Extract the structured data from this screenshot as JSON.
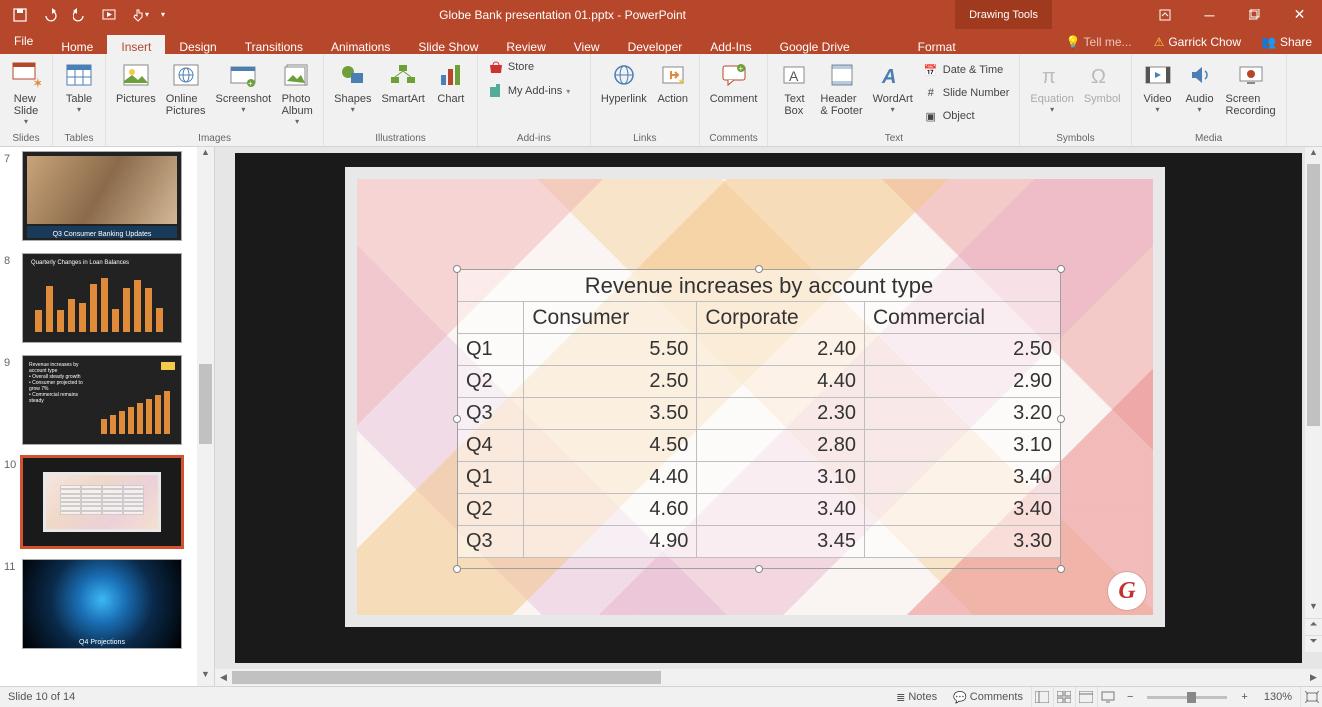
{
  "app": {
    "title": "Globe Bank presentation 01.pptx - PowerPoint",
    "contextual_tab_group": "Drawing Tools",
    "user_name": "Garrick Chow",
    "share_label": "Share",
    "tellme_placeholder": "Tell me..."
  },
  "colors": {
    "titlebar_bg": "#b7472a",
    "ribbon_bg": "#f1f1f1",
    "selected_thumb_border": "#d35230"
  },
  "menutabs": {
    "file": "File",
    "tabs": [
      "Home",
      "Insert",
      "Design",
      "Transitions",
      "Animations",
      "Slide Show",
      "Review",
      "View",
      "Developer",
      "Add-Ins",
      "Google Drive"
    ],
    "contextual": [
      "Format"
    ],
    "active": "Insert"
  },
  "ribbon": {
    "groups": [
      {
        "label": "Slides",
        "items": [
          {
            "name": "new-slide",
            "label": "New\nSlide"
          }
        ]
      },
      {
        "label": "Tables",
        "items": [
          {
            "name": "table",
            "label": "Table"
          }
        ]
      },
      {
        "label": "Images",
        "items": [
          {
            "name": "pictures",
            "label": "Pictures"
          },
          {
            "name": "online-pictures",
            "label": "Online\nPictures"
          },
          {
            "name": "screenshot",
            "label": "Screenshot"
          },
          {
            "name": "photo-album",
            "label": "Photo\nAlbum"
          }
        ]
      },
      {
        "label": "Illustrations",
        "items": [
          {
            "name": "shapes",
            "label": "Shapes"
          },
          {
            "name": "smartart",
            "label": "SmartArt"
          },
          {
            "name": "chart",
            "label": "Chart"
          }
        ]
      },
      {
        "label": "Add-ins",
        "store": "Store",
        "myaddins": "My Add-ins"
      },
      {
        "label": "Links",
        "items": [
          {
            "name": "hyperlink",
            "label": "Hyperlink"
          },
          {
            "name": "action",
            "label": "Action"
          }
        ]
      },
      {
        "label": "Comments",
        "items": [
          {
            "name": "comment",
            "label": "Comment"
          }
        ]
      },
      {
        "label": "Text",
        "items": [
          {
            "name": "text-box",
            "label": "Text\nBox"
          },
          {
            "name": "header-footer",
            "label": "Header\n& Footer"
          },
          {
            "name": "wordart",
            "label": "WordArt"
          }
        ],
        "side": [
          {
            "name": "date-time",
            "label": "Date & Time"
          },
          {
            "name": "slide-number",
            "label": "Slide Number"
          },
          {
            "name": "object",
            "label": "Object"
          }
        ]
      },
      {
        "label": "Symbols",
        "items": [
          {
            "name": "equation",
            "label": "Equation",
            "disabled": true
          },
          {
            "name": "symbol",
            "label": "Symbol",
            "disabled": true
          }
        ]
      },
      {
        "label": "Media",
        "items": [
          {
            "name": "video",
            "label": "Video"
          },
          {
            "name": "audio",
            "label": "Audio"
          },
          {
            "name": "screen-recording",
            "label": "Screen\nRecording"
          }
        ]
      }
    ]
  },
  "thumbnails": {
    "visible": [
      {
        "num": 7,
        "title": "Q3 Consumer Banking Updates",
        "selected": false,
        "type": "photo"
      },
      {
        "num": 8,
        "title": "Quarterly Changes in Loan Balances",
        "selected": false,
        "type": "bar-dark"
      },
      {
        "num": 9,
        "title": "Revenue increases by account type",
        "selected": false,
        "type": "bar-dark-bullets"
      },
      {
        "num": 10,
        "title": "",
        "selected": true,
        "type": "table-light"
      },
      {
        "num": 11,
        "title": "Q4 Projections",
        "selected": false,
        "type": "globe"
      }
    ]
  },
  "slide_table": {
    "title": "Revenue increases by account type",
    "columns": [
      "",
      "Consumer",
      "Corporate",
      "Commercial"
    ],
    "col_align": [
      "left",
      "right",
      "right",
      "right"
    ],
    "rows": [
      [
        "Q1",
        "5.50",
        "2.40",
        "2.50"
      ],
      [
        "Q2",
        "2.50",
        "4.40",
        "2.90"
      ],
      [
        "Q3",
        "3.50",
        "2.30",
        "3.20"
      ],
      [
        "Q4",
        "4.50",
        "2.80",
        "3.10"
      ],
      [
        "Q1",
        "4.40",
        "3.10",
        "3.40"
      ],
      [
        "Q2",
        "4.60",
        "3.40",
        "3.40"
      ],
      [
        "Q3",
        "4.90",
        "3.45",
        "3.30"
      ]
    ],
    "title_fontsize": 22,
    "cell_fontsize": 20,
    "border_color": "#bfbfbf",
    "text_color": "#333333",
    "bg_opacity": 0.55
  },
  "statusbar": {
    "slide_info": "Slide 10 of 14",
    "notes": "Notes",
    "comments": "Comments",
    "zoom": "130%"
  }
}
